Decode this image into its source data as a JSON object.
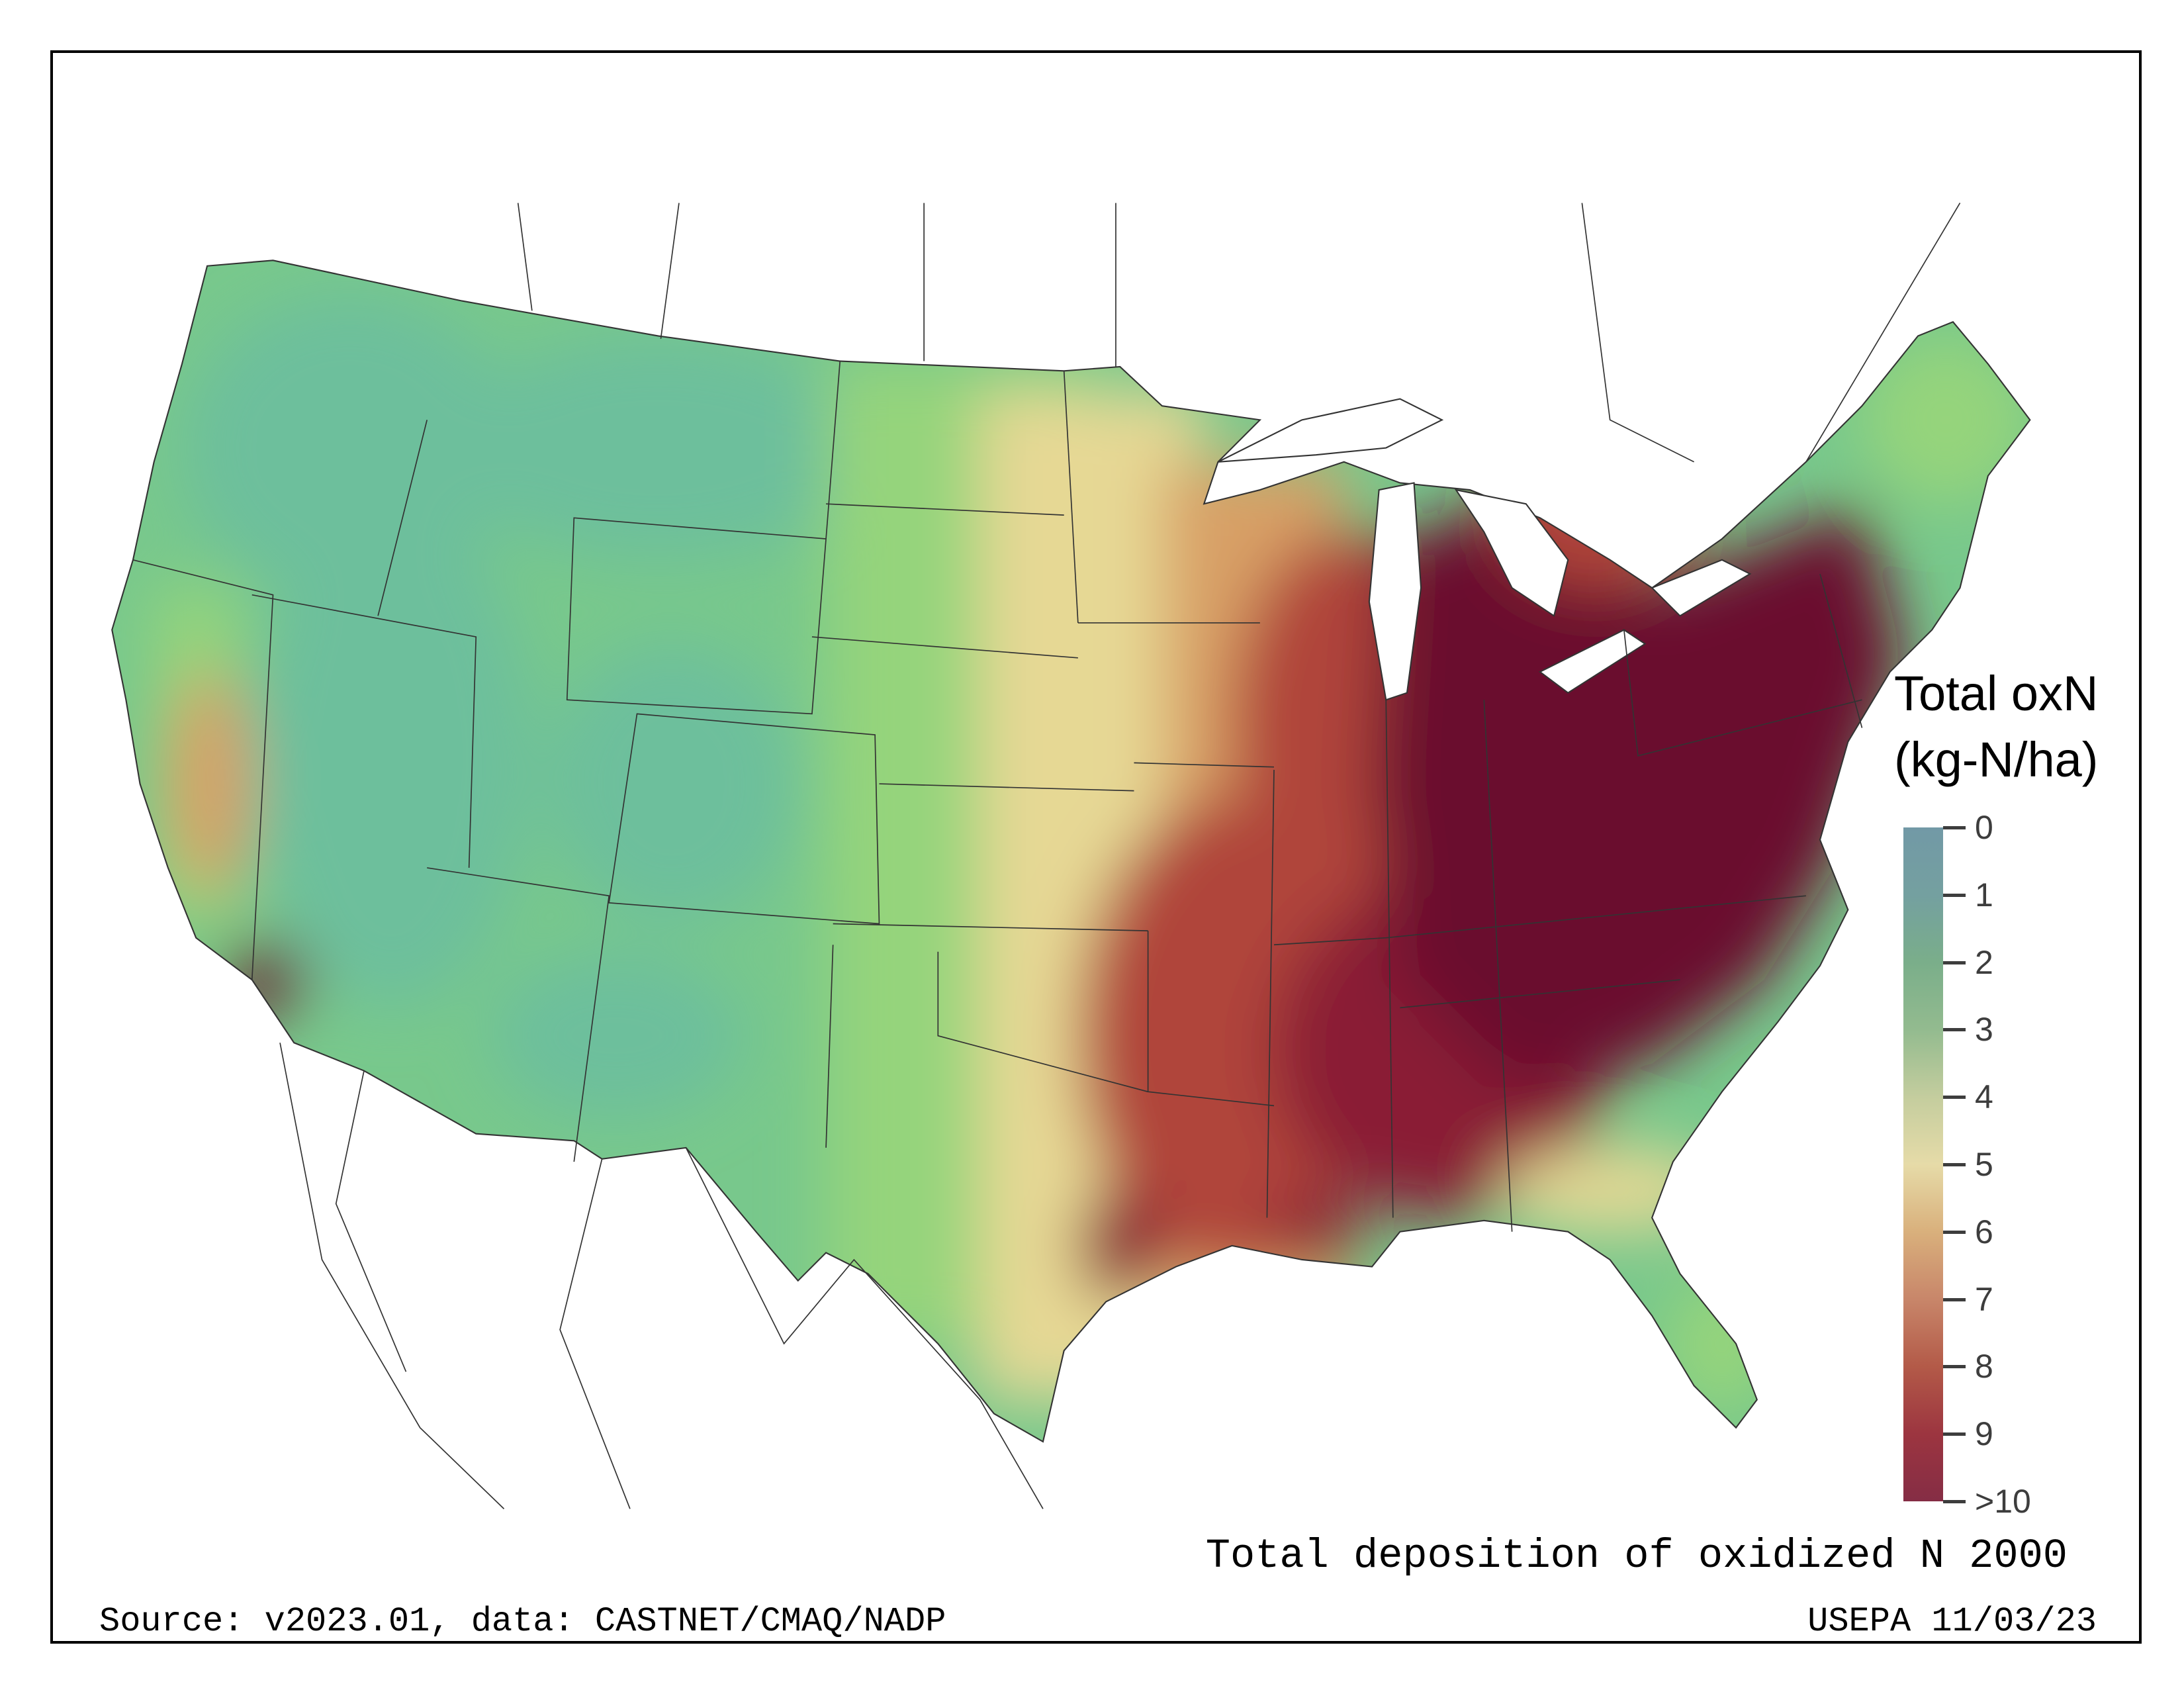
{
  "legend": {
    "title_line1": "Total oxN",
    "title_line2": "(kg-N/ha)",
    "ticks": [
      "0",
      "1",
      "2",
      "3",
      "4",
      "5",
      "6",
      "7",
      "8",
      "9",
      ">10"
    ],
    "colors": [
      "#7299a6",
      "#74a0a0",
      "#7aae8a",
      "#93bb8f",
      "#c4cd9e",
      "#e6dba8",
      "#d9b07c",
      "#c8866a",
      "#b35a48",
      "#9c3540",
      "#852d45"
    ]
  },
  "map": {
    "region": "Contiguous United States",
    "fill_colors": {
      "low_teal": "#6dbf9c",
      "green": "#78c88c",
      "light_green": "#95d47c",
      "yellow": "#e6d894",
      "tan": "#d8a066",
      "red": "#b0453a",
      "dark": "#6b0a2f"
    }
  },
  "captions": {
    "main": "Total deposition of oxidized N 2000",
    "source": "Source: v2023.01, data: CASTNET/CMAQ/NADP",
    "agency": "USEPA 11/03/23"
  }
}
